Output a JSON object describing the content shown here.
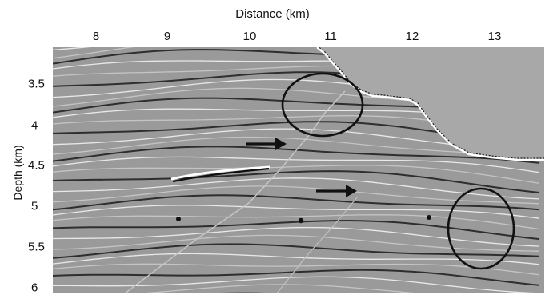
{
  "figure": {
    "xaxis": {
      "title": "Distance (km)",
      "ticks": [
        "8",
        "9",
        "10",
        "11",
        "12",
        "13"
      ]
    },
    "yaxis": {
      "title": "Depth (km)",
      "ticks": [
        "3.5",
        "4",
        "4.5",
        "5",
        "5.5",
        "6"
      ]
    },
    "annotations": {
      "circles": 3,
      "arrows": 2
    },
    "colors": {
      "section_gray": "#9a9a9a",
      "water_gray": "#a8a8a8",
      "reflector_dark": "#2e2e2e",
      "reflector_light": "#e8e8e8",
      "annotation": "#111111"
    }
  }
}
